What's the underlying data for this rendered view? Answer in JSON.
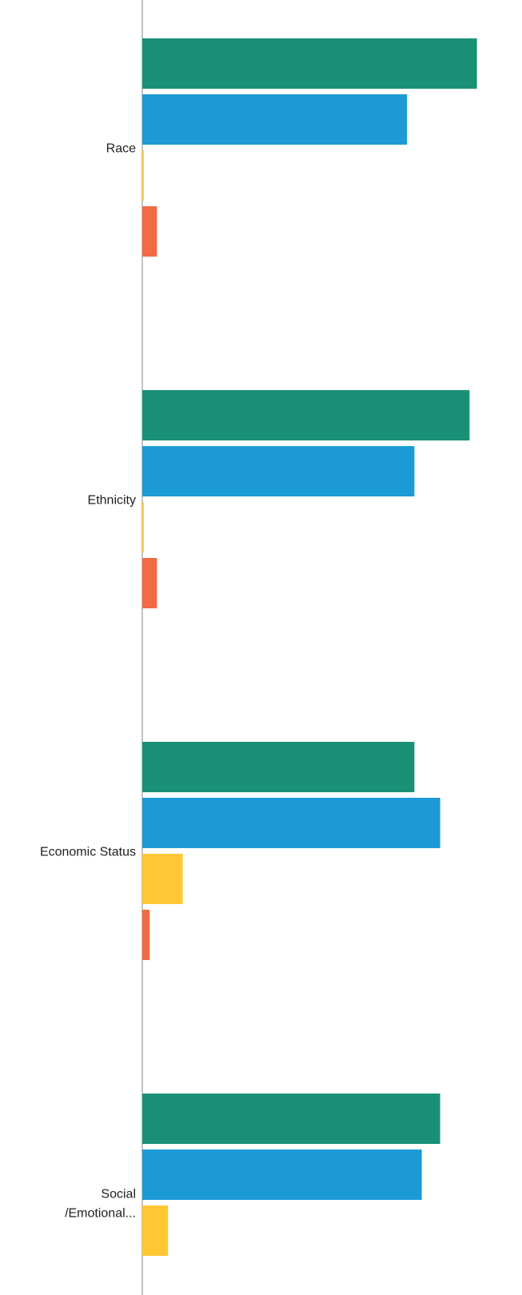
{
  "chart_data": {
    "type": "bar",
    "orientation": "horizontal",
    "categories": [
      [
        "Race"
      ],
      [
        "Ethnicity"
      ],
      [
        "Economic Status"
      ],
      [
        "Social",
        "/Emotional..."
      ]
    ],
    "series": [
      {
        "color": "#1a9176",
        "values": [
          91,
          89,
          74,
          81
        ]
      },
      {
        "color": "#1b9ad5",
        "values": [
          72,
          74,
          81,
          76
        ]
      },
      {
        "color": "#fec733",
        "values": [
          0.4,
          0.4,
          11,
          7
        ]
      },
      {
        "color": "#f36a47",
        "values": [
          4,
          4,
          2,
          null
        ]
      }
    ],
    "xlim": [
      0,
      100
    ],
    "grid": false,
    "legend": "none"
  }
}
